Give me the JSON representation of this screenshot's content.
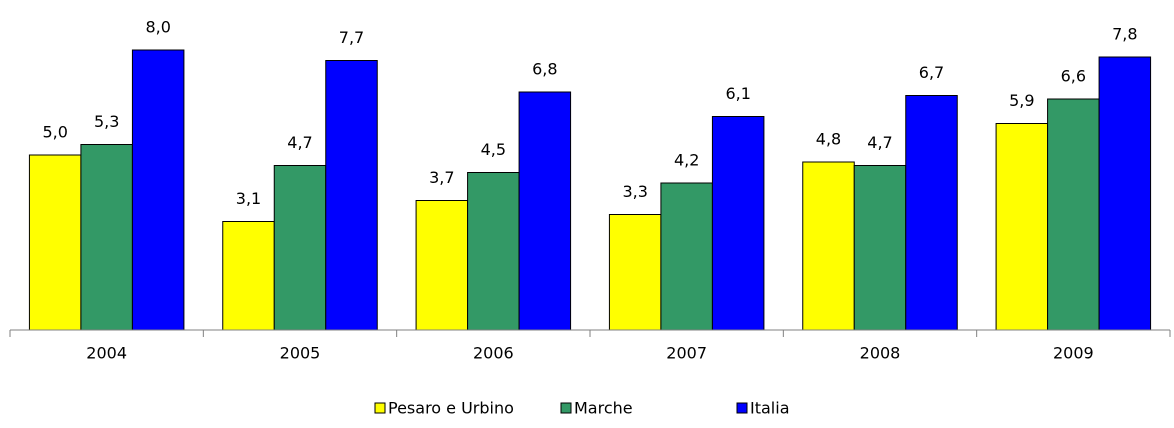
{
  "chart_data": {
    "type": "bar",
    "categories": [
      "2004",
      "2005",
      "2006",
      "2007",
      "2008",
      "2009"
    ],
    "series": [
      {
        "name": "Pesaro e Urbino",
        "color": "#ffff00",
        "values": [
          5.0,
          3.1,
          3.7,
          3.3,
          4.8,
          5.9
        ],
        "value_labels": [
          "5,0",
          "3,1",
          "3,7",
          "3,3",
          "4,8",
          "5,9"
        ]
      },
      {
        "name": "Marche",
        "color": "#339966",
        "values": [
          5.3,
          4.7,
          4.5,
          4.2,
          4.7,
          6.6
        ],
        "value_labels": [
          "5,3",
          "4,7",
          "4,5",
          "4,2",
          "4,7",
          "6,6"
        ]
      },
      {
        "name": "Italia",
        "color": "#0000ff",
        "values": [
          8.0,
          7.7,
          6.8,
          6.1,
          6.7,
          7.8
        ],
        "value_labels": [
          "8,0",
          "7,7",
          "6,8",
          "6,1",
          "6,7",
          "7,8"
        ]
      }
    ],
    "ylim": [
      0,
      9
    ],
    "legend": "bottom"
  }
}
